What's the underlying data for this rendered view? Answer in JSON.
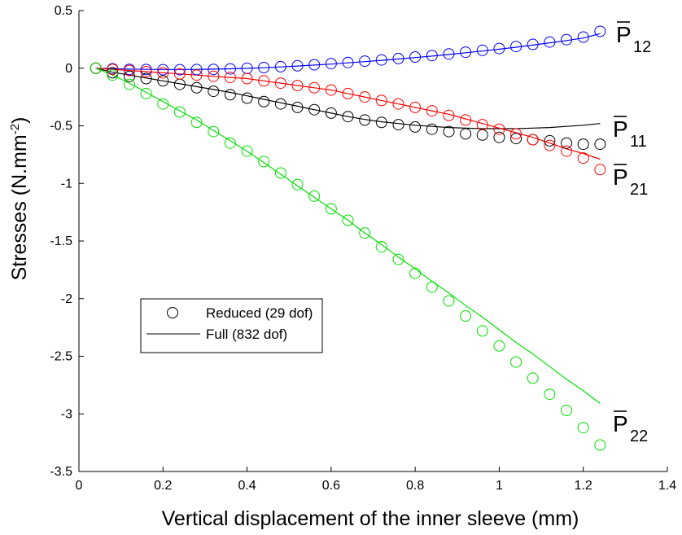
{
  "chart_data": {
    "type": "line",
    "xlabel": "Vertical displacement of the inner sleeve (mm)",
    "ylabel_prefix": "Stresses (N.mm",
    "ylabel_exp": "-2",
    "ylabel_suffix": ")",
    "xlim": [
      0,
      1.4
    ],
    "ylim": [
      -3.5,
      0.5
    ],
    "xticks": [
      0,
      0.2,
      0.4,
      0.6,
      0.8,
      1,
      1.2,
      1.4
    ],
    "xtick_labels": [
      "0",
      "0.2",
      "0.4",
      "0.6",
      "0.8",
      "1",
      "1.2",
      "1.4"
    ],
    "yticks": [
      0.5,
      0,
      -0.5,
      -1,
      -1.5,
      -2,
      -2.5,
      -3,
      -3.5
    ],
    "ytick_labels": [
      "0.5",
      "0",
      "-0.5",
      "-1",
      "-1.5",
      "-2",
      "-2.5",
      "-3",
      "-3.5"
    ],
    "grid": false,
    "legend": {
      "placement": "middle-left",
      "entries": [
        {
          "label": "Reduced (29 dof)",
          "style": "markers"
        },
        {
          "label": "Full (832 dof)",
          "style": "line"
        }
      ]
    },
    "x": [
      0.04,
      0.08,
      0.12,
      0.16,
      0.2,
      0.24,
      0.28,
      0.32,
      0.36,
      0.4,
      0.44,
      0.48,
      0.52,
      0.56,
      0.6,
      0.64,
      0.68,
      0.72,
      0.76,
      0.8,
      0.84,
      0.88,
      0.92,
      0.96,
      1.0,
      1.04,
      1.08,
      1.12,
      1.16,
      1.2,
      1.24
    ],
    "series": [
      {
        "name": "P̅",
        "label_base": "P",
        "label_sub": "12",
        "color": "#0000ff",
        "reduced": [
          0,
          -0.005,
          -0.01,
          -0.012,
          -0.013,
          -0.013,
          -0.012,
          -0.01,
          -0.006,
          -0.001,
          0.005,
          0.013,
          0.021,
          0.03,
          0.04,
          0.05,
          0.061,
          0.072,
          0.084,
          0.097,
          0.11,
          0.124,
          0.139,
          0.155,
          0.171,
          0.188,
          0.207,
          0.227,
          0.248,
          0.27,
          0.32
        ],
        "full": [
          0,
          -0.004,
          -0.008,
          -0.01,
          -0.011,
          -0.011,
          -0.01,
          -0.008,
          -0.005,
          -0.001,
          0.004,
          0.011,
          0.019,
          0.027,
          0.036,
          0.046,
          0.057,
          0.068,
          0.08,
          0.092,
          0.105,
          0.119,
          0.134,
          0.149,
          0.165,
          0.182,
          0.2,
          0.22,
          0.24,
          0.262,
          0.3
        ]
      },
      {
        "name": "P̅",
        "label_base": "P",
        "label_sub": "11",
        "color": "#000000",
        "reduced": [
          0,
          -0.04,
          -0.07,
          -0.09,
          -0.11,
          -0.14,
          -0.17,
          -0.2,
          -0.23,
          -0.26,
          -0.29,
          -0.31,
          -0.34,
          -0.36,
          -0.39,
          -0.42,
          -0.45,
          -0.47,
          -0.49,
          -0.51,
          -0.53,
          -0.55,
          -0.57,
          -0.58,
          -0.6,
          -0.61,
          -0.62,
          -0.63,
          -0.65,
          -0.66,
          -0.66
        ],
        "full": [
          0,
          -0.035,
          -0.06,
          -0.085,
          -0.11,
          -0.135,
          -0.16,
          -0.185,
          -0.21,
          -0.24,
          -0.27,
          -0.3,
          -0.33,
          -0.36,
          -0.39,
          -0.42,
          -0.445,
          -0.465,
          -0.48,
          -0.495,
          -0.505,
          -0.515,
          -0.52,
          -0.525,
          -0.525,
          -0.525,
          -0.52,
          -0.515,
          -0.505,
          -0.495,
          -0.48
        ]
      },
      {
        "name": "P̅",
        "label_base": "P",
        "label_sub": "21",
        "color": "#ff0000",
        "reduced": [
          0,
          -0.01,
          -0.02,
          -0.03,
          -0.04,
          -0.05,
          -0.06,
          -0.07,
          -0.08,
          -0.09,
          -0.11,
          -0.13,
          -0.15,
          -0.17,
          -0.19,
          -0.22,
          -0.25,
          -0.28,
          -0.31,
          -0.34,
          -0.37,
          -0.41,
          -0.45,
          -0.49,
          -0.53,
          -0.57,
          -0.62,
          -0.67,
          -0.72,
          -0.78,
          -0.88
        ],
        "full": [
          0,
          -0.01,
          -0.02,
          -0.03,
          -0.04,
          -0.05,
          -0.06,
          -0.07,
          -0.08,
          -0.09,
          -0.11,
          -0.13,
          -0.15,
          -0.17,
          -0.19,
          -0.22,
          -0.25,
          -0.28,
          -0.31,
          -0.34,
          -0.37,
          -0.4,
          -0.44,
          -0.48,
          -0.52,
          -0.56,
          -0.6,
          -0.65,
          -0.7,
          -0.74,
          -0.79
        ]
      },
      {
        "name": "P̅",
        "label_base": "P",
        "label_sub": "22",
        "color": "#00e000",
        "reduced": [
          0,
          -0.06,
          -0.14,
          -0.22,
          -0.31,
          -0.38,
          -0.47,
          -0.55,
          -0.65,
          -0.72,
          -0.81,
          -0.91,
          -1.01,
          -1.11,
          -1.22,
          -1.32,
          -1.43,
          -1.55,
          -1.66,
          -1.78,
          -1.9,
          -2.02,
          -2.15,
          -2.28,
          -2.41,
          -2.55,
          -2.69,
          -2.83,
          -2.97,
          -3.12,
          -3.27
        ],
        "full": [
          0,
          -0.06,
          -0.13,
          -0.21,
          -0.29,
          -0.37,
          -0.45,
          -0.54,
          -0.63,
          -0.72,
          -0.82,
          -0.92,
          -1.02,
          -1.12,
          -1.22,
          -1.32,
          -1.43,
          -1.53,
          -1.64,
          -1.74,
          -1.85,
          -1.95,
          -2.06,
          -2.16,
          -2.27,
          -2.38,
          -2.48,
          -2.59,
          -2.7,
          -2.8,
          -2.91
        ]
      }
    ]
  }
}
